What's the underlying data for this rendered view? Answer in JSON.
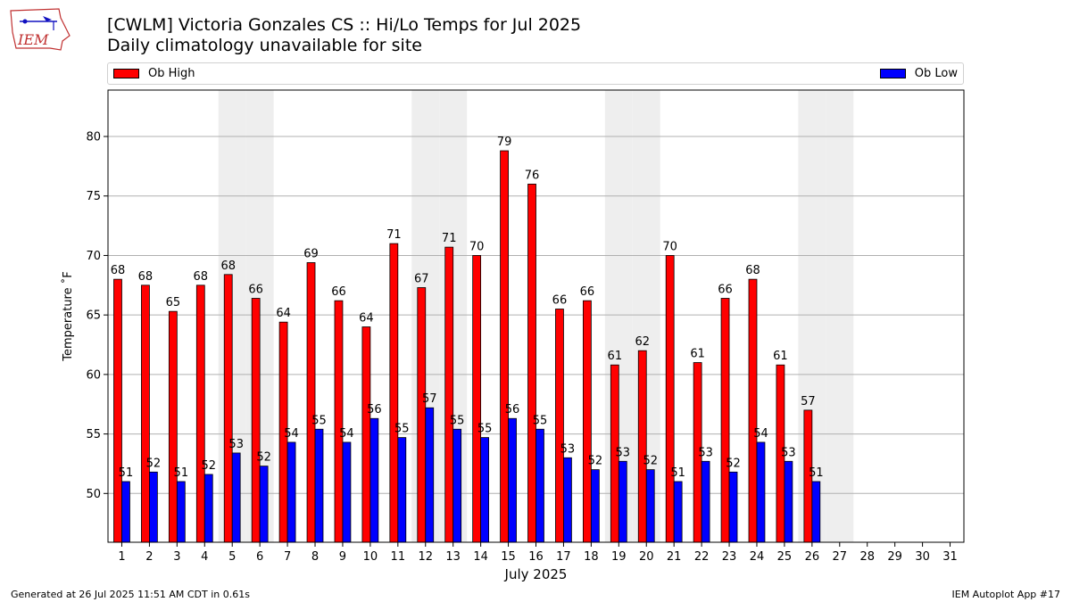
{
  "header": {
    "logo_text": "IEM",
    "title": "[CWLM] Victoria Gonzales CS :: Hi/Lo Temps for Jul 2025",
    "subtitle": "Daily climatology unavailable for site"
  },
  "legend": {
    "placement": "top",
    "items": [
      {
        "label": "Ob High",
        "color": "#ff0000"
      },
      {
        "label": "Ob Low",
        "color": "#0000ff"
      }
    ]
  },
  "footer": {
    "generated": "Generated at 26 Jul 2025 11:51 AM CDT in 0.61s",
    "app": "IEM Autoplot App #17"
  },
  "chart_data": {
    "type": "bar",
    "xlabel": "July 2025",
    "ylabel": "Temperature ˚F",
    "ylim": [
      45.9,
      83.9
    ],
    "yticks": [
      50,
      55,
      60,
      65,
      70,
      75,
      80
    ],
    "grid": "horizontal",
    "categories": [
      "1",
      "2",
      "3",
      "4",
      "5",
      "6",
      "7",
      "8",
      "9",
      "10",
      "11",
      "12",
      "13",
      "14",
      "15",
      "16",
      "17",
      "18",
      "19",
      "20",
      "21",
      "22",
      "23",
      "24",
      "25",
      "26",
      "27",
      "28",
      "29",
      "30",
      "31"
    ],
    "weekend_shading_days": [
      5,
      6,
      12,
      13,
      19,
      20,
      26,
      27
    ],
    "series": [
      {
        "name": "Ob High",
        "color": "#ff0000",
        "values": [
          68,
          67.5,
          65.3,
          67.5,
          68.4,
          66.4,
          64.4,
          69.4,
          66.2,
          64,
          71,
          67.3,
          70.7,
          70,
          78.8,
          76,
          65.5,
          66.2,
          60.8,
          62,
          70,
          61,
          66.4,
          68,
          60.8,
          57,
          null,
          null,
          null,
          null,
          null
        ],
        "labels": [
          "68",
          "68",
          "65",
          "68",
          "68",
          "66",
          "64",
          "69",
          "66",
          "64",
          "71",
          "67",
          "71",
          "70",
          "79",
          "76",
          "66",
          "66",
          "61",
          "62",
          "70",
          "61",
          "66",
          "68",
          "61",
          "57",
          "",
          "",
          "",
          "",
          ""
        ]
      },
      {
        "name": "Ob Low",
        "color": "#0000ff",
        "values": [
          51,
          51.8,
          51,
          51.6,
          53.4,
          52.3,
          54.3,
          55.4,
          54.3,
          56.3,
          54.7,
          57.2,
          55.4,
          54.7,
          56.3,
          55.4,
          53,
          52,
          52.7,
          52,
          51,
          52.7,
          51.8,
          54.3,
          52.7,
          51,
          null,
          null,
          null,
          null,
          null
        ],
        "labels": [
          "51",
          "52",
          "51",
          "52",
          "53",
          "52",
          "54",
          "55",
          "54",
          "56",
          "55",
          "57",
          "55",
          "55",
          "56",
          "55",
          "53",
          "52",
          "53",
          "52",
          "51",
          "53",
          "52",
          "54",
          "53",
          "51",
          "",
          "",
          "",
          "",
          ""
        ]
      }
    ]
  }
}
